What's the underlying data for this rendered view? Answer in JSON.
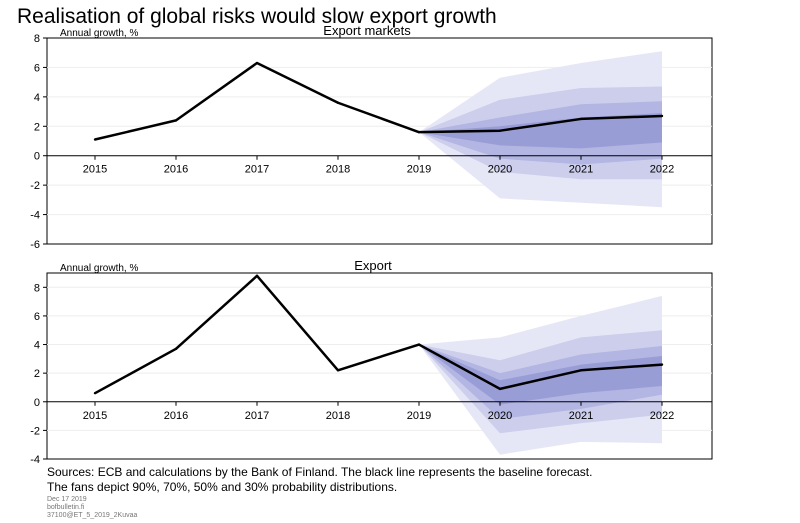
{
  "title": "Realisation of global risks would slow export growth",
  "sources": [
    "Sources: ECB and calculations by the Bank of Finland. The black line represents the baseline forecast.",
    "The fans depict 90%, 70%, 50% and 30% probability distributions."
  ],
  "meta": [
    "Dec 17 2019",
    "bofbulletin.fi",
    "37100@ET_5_2019_2Kuvaa"
  ],
  "colors": {
    "baseline": "#000000",
    "fan_90": "#e6e7f6",
    "fan_70": "#ccceec",
    "fan_50": "#b3b5e2",
    "fan_30": "#999dd6",
    "axis": "#000000",
    "grid": "#eeeeee"
  },
  "chart_data": [
    {
      "type": "line",
      "title": "Export markets",
      "ylabel": "Annual growth, %",
      "categories": [
        "2015",
        "2016",
        "2017",
        "2018",
        "2019",
        "2020",
        "2021",
        "2022"
      ],
      "ylim": [
        -6,
        8
      ],
      "yticks": [
        -6,
        -4,
        -2,
        0,
        2,
        4,
        6,
        8
      ],
      "grid": true,
      "baseline": [
        1.1,
        2.4,
        6.3,
        3.6,
        1.6,
        1.7,
        2.5,
        2.7
      ],
      "fans": {
        "start_index": 4,
        "bands": [
          {
            "probability": "90%",
            "lower": [
              1.6,
              -2.9,
              -3.2,
              -3.5
            ],
            "upper": [
              1.6,
              5.3,
              6.3,
              7.1
            ]
          },
          {
            "probability": "70%",
            "lower": [
              1.6,
              -1.1,
              -1.6,
              -1.6
            ],
            "upper": [
              1.6,
              3.8,
              4.6,
              4.7
            ]
          },
          {
            "probability": "50%",
            "lower": [
              1.6,
              -0.2,
              -0.6,
              -0.2
            ],
            "upper": [
              1.6,
              2.6,
              3.5,
              3.7
            ]
          },
          {
            "probability": "30%",
            "lower": [
              1.6,
              0.7,
              0.5,
              0.9
            ],
            "upper": [
              1.6,
              2.0,
              2.6,
              2.9
            ]
          }
        ]
      }
    },
    {
      "type": "line",
      "title": "Export",
      "ylabel": "Annual growth, %",
      "categories": [
        "2015",
        "2016",
        "2017",
        "2018",
        "2019",
        "2020",
        "2021",
        "2022"
      ],
      "ylim": [
        -4,
        9
      ],
      "yticks": [
        -4,
        -2,
        0,
        2,
        4,
        6,
        8
      ],
      "grid": true,
      "baseline": [
        0.6,
        3.7,
        8.8,
        2.2,
        4.0,
        0.9,
        2.2,
        2.6
      ],
      "fans": {
        "start_index": 4,
        "bands": [
          {
            "probability": "90%",
            "lower": [
              4.0,
              -3.7,
              -2.8,
              -2.9
            ],
            "upper": [
              4.0,
              4.5,
              6.0,
              7.4
            ]
          },
          {
            "probability": "70%",
            "lower": [
              4.0,
              -2.2,
              -1.5,
              -0.9
            ],
            "upper": [
              4.0,
              2.9,
              4.5,
              5.0
            ]
          },
          {
            "probability": "50%",
            "lower": [
              4.0,
              -1.2,
              -0.5,
              0.5
            ],
            "upper": [
              4.0,
              2.0,
              3.3,
              3.9
            ]
          },
          {
            "probability": "30%",
            "lower": [
              4.0,
              -0.2,
              0.6,
              1.1
            ],
            "upper": [
              4.0,
              1.5,
              2.6,
              3.2
            ]
          }
        ]
      }
    }
  ]
}
